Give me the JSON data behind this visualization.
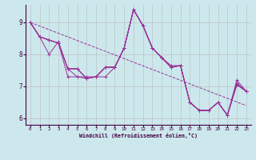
{
  "xlabel": "Windchill (Refroidissement éolien,°C)",
  "bg_color": "#cce8ec",
  "line_color": "#993399",
  "grid_color": "#bbbbbb",
  "xmin": -0.5,
  "xmax": 23.5,
  "ymin": 5.8,
  "ymax": 9.55,
  "yticks": [
    6,
    7,
    8,
    9
  ],
  "xticks": [
    0,
    1,
    2,
    3,
    4,
    5,
    6,
    7,
    8,
    9,
    10,
    11,
    12,
    13,
    14,
    15,
    16,
    17,
    18,
    19,
    20,
    21,
    22,
    23
  ],
  "lines": [
    [
      9.0,
      8.55,
      8.45,
      8.35,
      7.55,
      7.55,
      7.25,
      7.3,
      7.6,
      7.6,
      8.2,
      9.4,
      8.9,
      8.2,
      7.9,
      7.6,
      7.65,
      6.5,
      6.25,
      6.25,
      6.5,
      6.1,
      7.1,
      6.85
    ],
    [
      9.0,
      8.55,
      8.45,
      8.35,
      7.55,
      7.55,
      7.25,
      7.3,
      7.6,
      7.6,
      8.2,
      9.4,
      8.9,
      8.2,
      7.9,
      7.6,
      7.65,
      6.5,
      6.25,
      6.25,
      6.5,
      6.1,
      7.1,
      6.85
    ],
    [
      9.0,
      8.55,
      8.45,
      8.35,
      7.3,
      7.3,
      7.25,
      7.3,
      7.3,
      7.6,
      8.2,
      9.4,
      8.9,
      8.2,
      7.9,
      7.6,
      7.65,
      6.5,
      6.25,
      6.25,
      6.5,
      6.1,
      7.05,
      6.85
    ],
    [
      9.0,
      8.55,
      8.0,
      8.4,
      7.55,
      7.3,
      7.3,
      7.3,
      7.6,
      7.6,
      8.2,
      9.4,
      8.9,
      8.2,
      7.9,
      7.65,
      7.65,
      6.5,
      6.25,
      6.25,
      6.5,
      6.1,
      7.2,
      6.85
    ],
    [
      9.0,
      8.55,
      8.45,
      8.35,
      7.55,
      7.55,
      7.25,
      7.3,
      7.6,
      7.6,
      8.2,
      9.4,
      8.9,
      8.2,
      7.9,
      7.6,
      7.65,
      6.5,
      6.25,
      6.25,
      6.5,
      6.1,
      7.05,
      6.85
    ]
  ],
  "trend_start": 9.0,
  "trend_end": 6.4
}
